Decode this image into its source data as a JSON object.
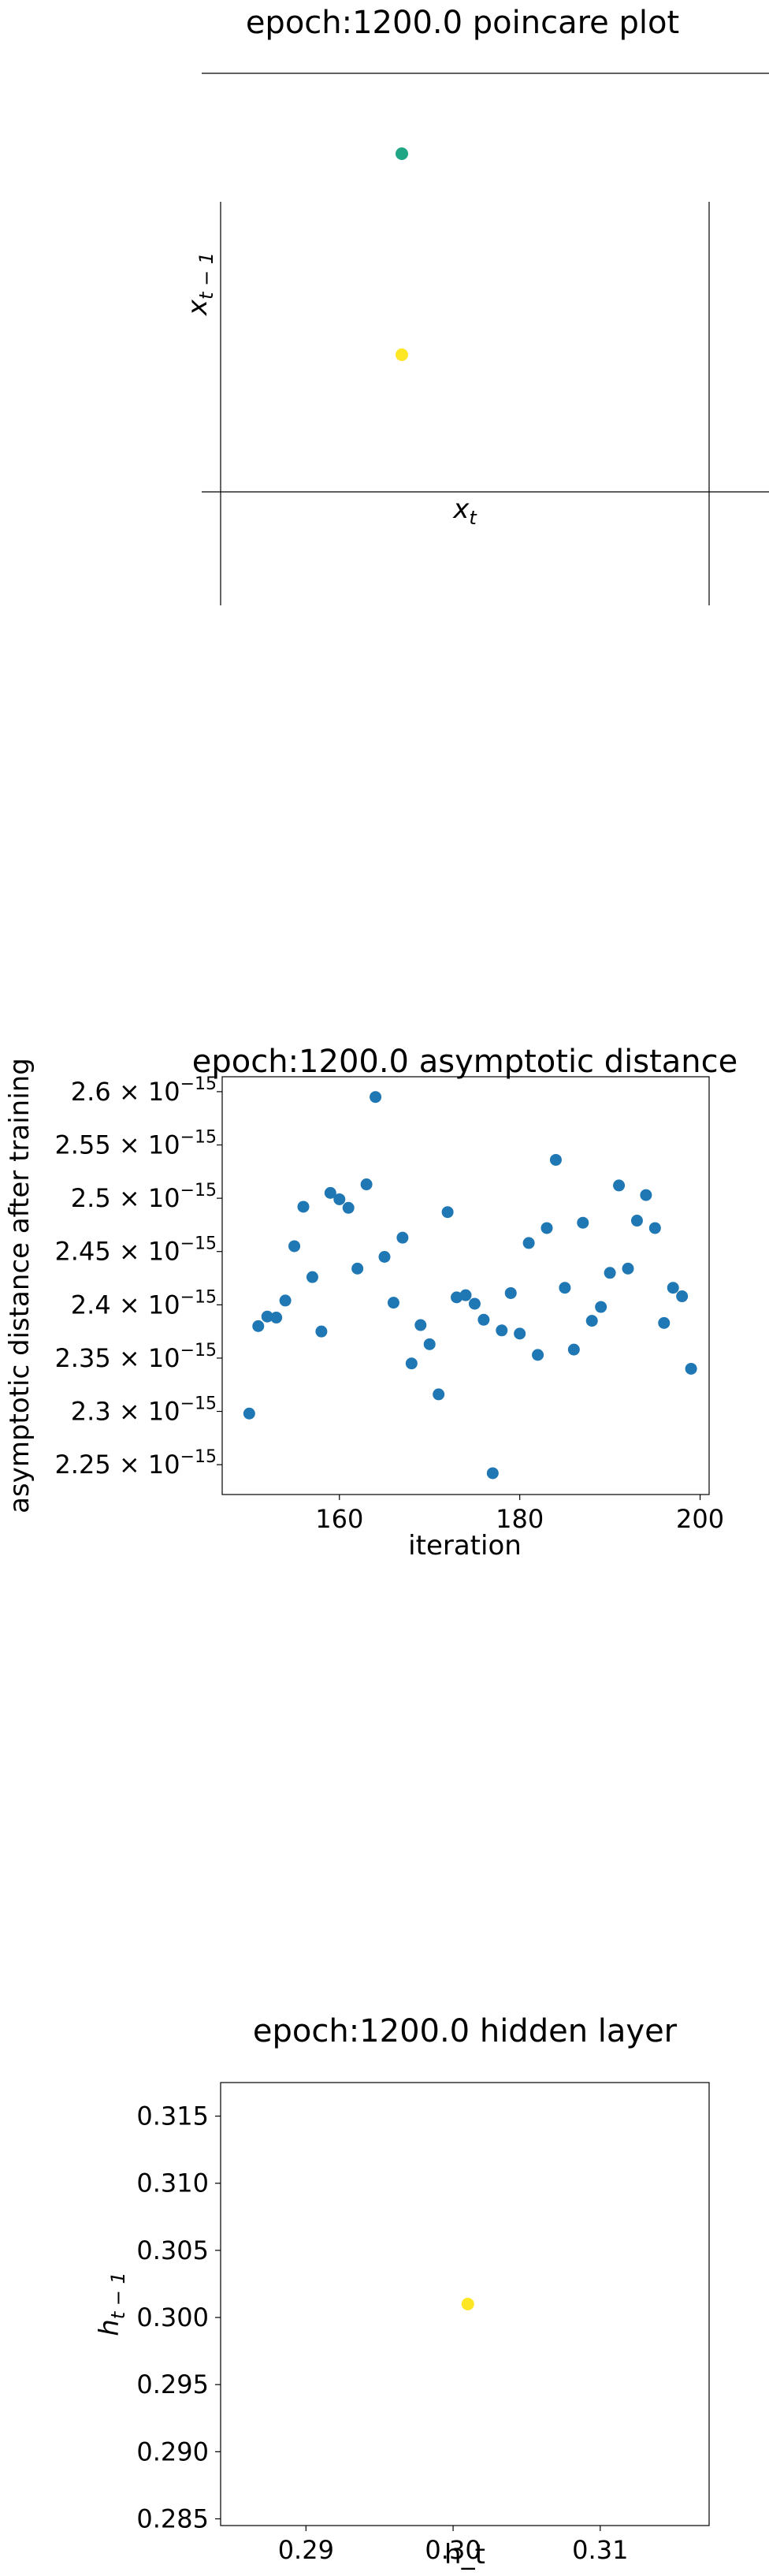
{
  "chart_data": [
    {
      "type": "scatter",
      "title": "epoch:1200.0 poincare plot",
      "xlabel": "x_t",
      "ylabel": "x_{t-1}",
      "points": [
        {
          "x": 0,
          "y": 1,
          "color": "#21a685"
        },
        {
          "x": 0,
          "y": 0,
          "color": "#fde725"
        }
      ]
    },
    {
      "type": "scatter",
      "title": "epoch:1200.0 asymptotic distance",
      "xlabel": "iteration",
      "ylabel": "asymptotic distance after training",
      "xlim": [
        147,
        201
      ],
      "ylim": [
        2.222e-15,
        2.614e-15
      ],
      "xticks": [
        {
          "value": 160,
          "label": "160"
        },
        {
          "value": 180,
          "label": "180"
        },
        {
          "value": 200,
          "label": "200"
        }
      ],
      "yticks": [
        {
          "value": 2.25e-15,
          "label": "2.25 × 10",
          "exp": "−15"
        },
        {
          "value": 2.3e-15,
          "label": "2.3 × 10",
          "exp": "−15"
        },
        {
          "value": 2.35e-15,
          "label": "2.35 × 10",
          "exp": "−15"
        },
        {
          "value": 2.4e-15,
          "label": "2.4 × 10",
          "exp": "−15"
        },
        {
          "value": 2.45e-15,
          "label": "2.45 × 10",
          "exp": "−15"
        },
        {
          "value": 2.5e-15,
          "label": "2.5 × 10",
          "exp": "−15"
        },
        {
          "value": 2.55e-15,
          "label": "2.55 × 10",
          "exp": "−15"
        },
        {
          "value": 2.6e-15,
          "label": "2.6 × 10",
          "exp": "−15"
        }
      ],
      "color": "#1f77b4",
      "x": [
        150,
        151,
        152,
        153,
        154,
        155,
        156,
        157,
        158,
        159,
        160,
        161,
        162,
        163,
        164,
        165,
        166,
        167,
        168,
        169,
        170,
        171,
        172,
        173,
        174,
        175,
        176,
        177,
        178,
        179,
        180,
        181,
        182,
        183,
        184,
        185,
        186,
        187,
        188,
        189,
        190,
        191,
        192,
        193,
        194,
        195,
        196,
        197,
        198,
        199
      ],
      "y": [
        2.298e-15,
        2.38e-15,
        2.389e-15,
        2.388e-15,
        2.404e-15,
        2.455e-15,
        2.492e-15,
        2.426e-15,
        2.375e-15,
        2.505e-15,
        2.499e-15,
        2.491e-15,
        2.434e-15,
        2.513e-15,
        2.595e-15,
        2.445e-15,
        2.402e-15,
        2.463e-15,
        2.345e-15,
        2.381e-15,
        2.363e-15,
        2.316e-15,
        2.487e-15,
        2.407e-15,
        2.409e-15,
        2.401e-15,
        2.386e-15,
        2.242e-15,
        2.376e-15,
        2.411e-15,
        2.373e-15,
        2.458e-15,
        2.353e-15,
        2.472e-15,
        2.536e-15,
        2.416e-15,
        2.358e-15,
        2.477e-15,
        2.385e-15,
        2.398e-15,
        2.43e-15,
        2.512e-15,
        2.434e-15,
        2.479e-15,
        2.503e-15,
        2.472e-15,
        2.383e-15,
        2.416e-15,
        2.408e-15,
        2.34e-15
      ]
    },
    {
      "type": "scatter",
      "title": "epoch:1200.0 hidden layer",
      "xlabel": "h_t",
      "ylabel": "h_{t-1}",
      "xlim": [
        0.2842,
        0.3174
      ],
      "ylim": [
        0.2845,
        0.3175
      ],
      "xticks": [
        0.29,
        0.3,
        0.31
      ],
      "yticks": [
        0.285,
        0.29,
        0.295,
        0.3,
        0.305,
        0.31,
        0.315
      ],
      "points": [
        {
          "x": 0.301,
          "y": 0.301,
          "color": "#fde725"
        }
      ]
    }
  ]
}
